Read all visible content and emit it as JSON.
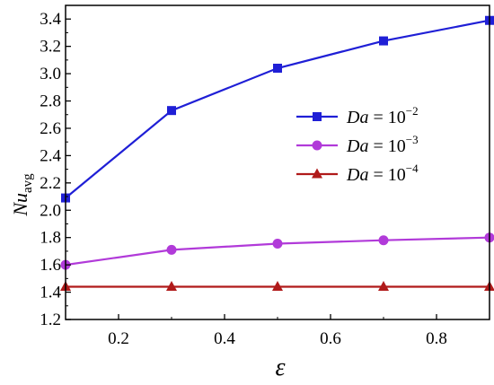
{
  "chart_data": {
    "type": "line",
    "xlabel": "ε",
    "ylabel_main": "Nu",
    "ylabel_sub": "avg",
    "x": [
      0.1,
      0.3,
      0.5,
      0.7,
      0.9
    ],
    "xlim": [
      0.1,
      0.9
    ],
    "ylim": [
      1.2,
      3.5
    ],
    "xticks": [
      0.2,
      0.4,
      0.6,
      0.8
    ],
    "xtick_labels": [
      "0.2",
      "0.4",
      "0.6",
      "0.8"
    ],
    "yticks": [
      1.2,
      1.4,
      1.6,
      1.8,
      2.0,
      2.2,
      2.4,
      2.6,
      2.8,
      3.0,
      3.2,
      3.4
    ],
    "ytick_labels": [
      "1.2",
      "1.4",
      "1.6",
      "1.8",
      "2.0",
      "2.2",
      "2.4",
      "2.6",
      "2.8",
      "3.0",
      "3.2",
      "3.4"
    ],
    "grid": false,
    "legend_position": "right-middle",
    "series": [
      {
        "name_var": "Da",
        "name_eq": " = 10",
        "name_exp": "−2",
        "color": "#1f1fd6",
        "marker": "square",
        "values": [
          2.09,
          2.73,
          3.04,
          3.24,
          3.39
        ]
      },
      {
        "name_var": "Da",
        "name_eq": " = 10",
        "name_exp": "−3",
        "color": "#b13ad9",
        "marker": "circle",
        "values": [
          1.6,
          1.71,
          1.755,
          1.78,
          1.8
        ]
      },
      {
        "name_var": "Da",
        "name_eq": " = 10",
        "name_exp": "−4",
        "color": "#b01a1a",
        "marker": "triangle",
        "values": [
          1.44,
          1.44,
          1.44,
          1.44,
          1.44
        ]
      }
    ]
  }
}
